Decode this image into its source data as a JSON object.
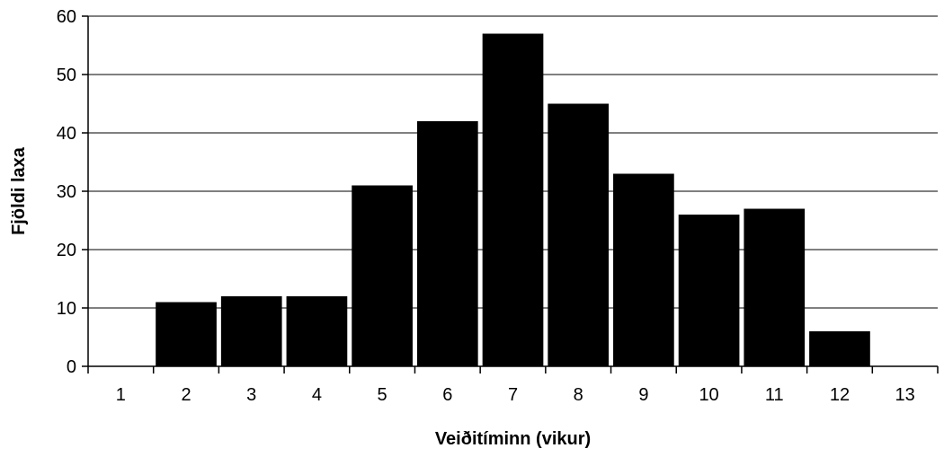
{
  "chart_data": {
    "type": "bar",
    "title": "",
    "xlabel": "Veiðitíminn (vikur)",
    "ylabel": "Fjöldi laxa",
    "categories": [
      "1",
      "2",
      "3",
      "4",
      "5",
      "6",
      "7",
      "8",
      "9",
      "10",
      "11",
      "12",
      "13"
    ],
    "values": [
      0,
      11,
      12,
      12,
      31,
      42,
      57,
      45,
      33,
      26,
      27,
      6,
      0
    ],
    "ylim": [
      0,
      60
    ],
    "yticks": [
      0,
      10,
      20,
      30,
      40,
      50,
      60
    ],
    "grid": true,
    "legend": "none",
    "bar_color": "#000000"
  }
}
